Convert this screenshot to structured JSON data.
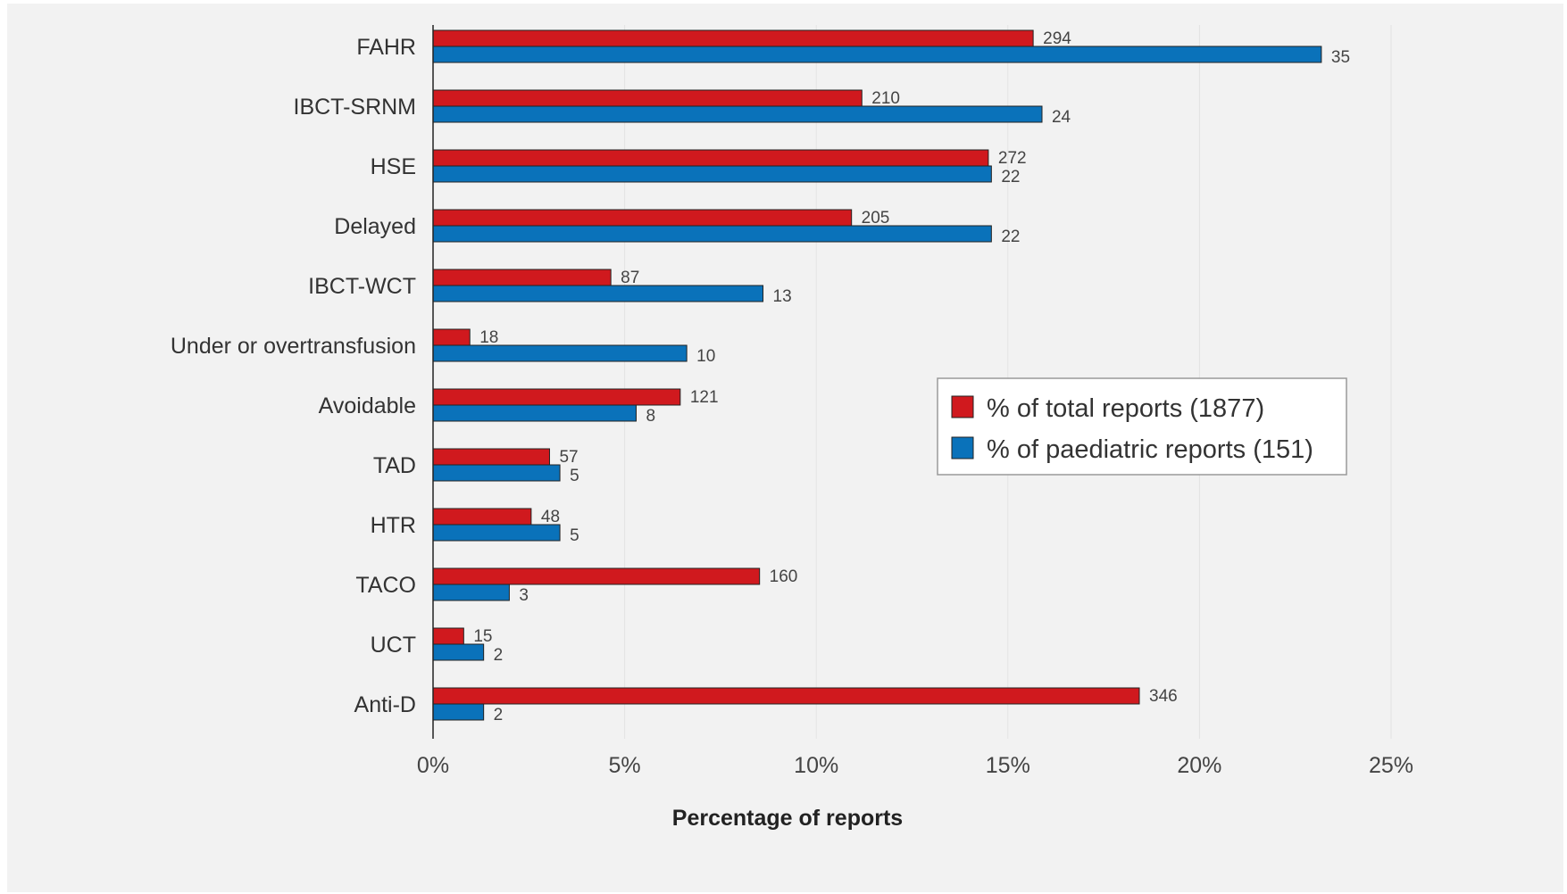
{
  "chart_data": {
    "type": "bar",
    "orientation": "horizontal",
    "categories": [
      "FAHR",
      "IBCT-SRNM",
      "HSE",
      "Delayed",
      "IBCT-WCT",
      "Under or overtransfusion",
      "Avoidable",
      "TAD",
      "HTR",
      "TACO",
      "UCT",
      "Anti-D"
    ],
    "series": [
      {
        "name": "% of total reports (1877)",
        "color": "#d0191e",
        "values": [
          15.66,
          11.19,
          14.49,
          10.92,
          4.64,
          0.96,
          6.45,
          3.04,
          2.56,
          8.52,
          0.8,
          18.43
        ],
        "labels": [
          "294",
          "210",
          "272",
          "205",
          "87",
          "18",
          "121",
          "57",
          "48",
          "160",
          "15",
          "346"
        ]
      },
      {
        "name": "% of paediatric reports (151)",
        "color": "#0a72ba",
        "values": [
          23.18,
          15.89,
          14.57,
          14.57,
          8.61,
          6.62,
          5.3,
          3.31,
          3.31,
          1.99,
          1.32,
          1.32
        ],
        "labels": [
          "35",
          "24",
          "22",
          "22",
          "13",
          "10",
          "8",
          "5",
          "5",
          "3",
          "2",
          "2"
        ]
      }
    ],
    "xlim": [
      0,
      25
    ],
    "xticks": [
      "0%",
      "5%",
      "10%",
      "15%",
      "20%",
      "25%"
    ],
    "xtick_values": [
      0,
      5,
      10,
      15,
      20,
      25
    ],
    "xlabel": "Percentage of reports",
    "ylabel": "",
    "title": "",
    "grid": "vertical",
    "legend_position": "right"
  }
}
